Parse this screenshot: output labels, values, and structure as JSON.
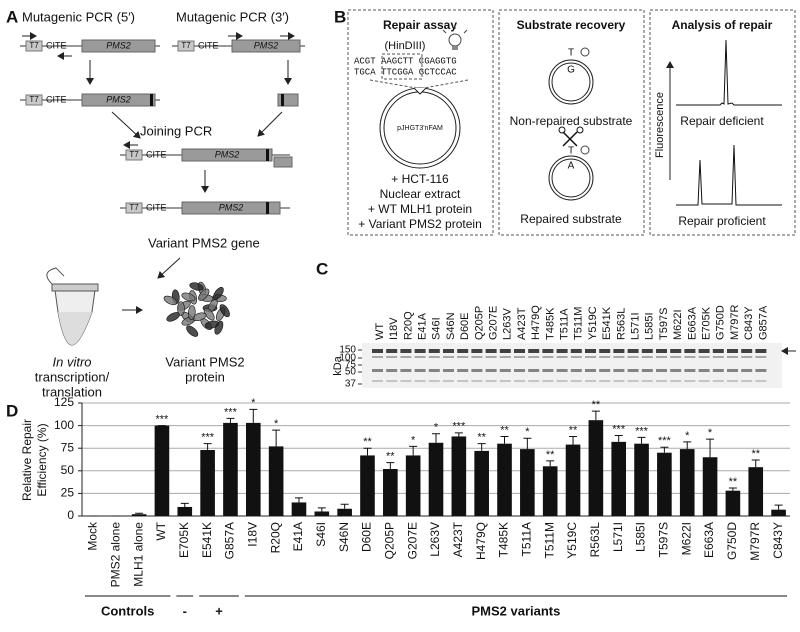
{
  "panel_a": {
    "label": "A",
    "pcr5": "Mutagenic PCR (5′)",
    "pcr3": "Mutagenic PCR (3′)",
    "t7": "T7",
    "cite": "CITE",
    "gene": "PMS2",
    "joining": "Joining PCR",
    "variant_gene": "Variant PMS2 gene",
    "ivt": [
      "In vitro",
      "transcription/",
      "translation"
    ],
    "variant_protein": [
      "Variant PMS2",
      "protein"
    ]
  },
  "panel_b": {
    "label": "B",
    "repair_assay": {
      "title": "Repair assay",
      "site": "(HinDIII)",
      "top_strand": "ACGT AAGCTT CGAGGTG",
      "bottom_strand": "TGCA TTCGGA GCTCCAC",
      "plasmid": "pJHGT3'nFAM",
      "conditions": [
        "+ HCT-116",
        "Nuclear extract",
        "+ WT MLH1 protein",
        "+ Variant PMS2 protein"
      ]
    },
    "substrate_recovery": {
      "title": "Substrate recovery",
      "non_repaired": {
        "top": "T",
        "bottom": "G",
        "caption": "Non-repaired substrate"
      },
      "repaired": {
        "top": "T",
        "bottom": "A",
        "caption": "Repaired substrate"
      }
    },
    "analysis": {
      "title": "Analysis of repair",
      "axis": "Fluorescence",
      "deficient": "Repair deficient",
      "proficient": "Repair proficient"
    }
  },
  "panel_c": {
    "label": "C",
    "lanes": [
      "WT",
      "I18V",
      "R20Q",
      "E41A",
      "S46I",
      "S46N",
      "D60E",
      "Q205P",
      "G207E",
      "L263V",
      "A423T",
      "H479Q",
      "T485K",
      "T511A",
      "T511M",
      "Y519C",
      "E541K",
      "R563L",
      "L571I",
      "L585I",
      "T597S",
      "M622I",
      "E663A",
      "E705K",
      "G750D",
      "M797R",
      "C843Y",
      "G857A"
    ],
    "axis_label": "kDa",
    "markers": [
      150,
      100,
      75,
      50,
      37
    ]
  },
  "chart_data": {
    "type": "bar",
    "panel_label": "D",
    "y_label": [
      "Relative Repair",
      "Efficiency (%)"
    ],
    "categories": [
      "Mock",
      "PMS2 alone",
      "MLH1 alone",
      "WT",
      "E705K",
      "E541K",
      "G857A",
      "I18V",
      "R20Q",
      "E41A",
      "S46I",
      "S46N",
      "D60E",
      "Q205P",
      "G207E",
      "L263V",
      "A423T",
      "H479Q",
      "T485K",
      "T511A",
      "T511M",
      "Y519C",
      "R563L",
      "L571I",
      "L585I",
      "T597S",
      "M622I",
      "E663A",
      "G750D",
      "M797R",
      "C843Y"
    ],
    "values": [
      0,
      0,
      2,
      100,
      10,
      73,
      103,
      103,
      77,
      15,
      5,
      8,
      67,
      52,
      67,
      81,
      88,
      72,
      80,
      74,
      55,
      79,
      106,
      82,
      80,
      70,
      74,
      65,
      28,
      54,
      7
    ],
    "errors": [
      0,
      0,
      1,
      0,
      4,
      7,
      5,
      15,
      18,
      5,
      4,
      5,
      8,
      7,
      10,
      10,
      4,
      8,
      8,
      12,
      6,
      9,
      10,
      7,
      7,
      6,
      8,
      20,
      3,
      8,
      5
    ],
    "significance": [
      null,
      null,
      null,
      "***",
      null,
      "***",
      "***",
      "*",
      "*",
      null,
      null,
      null,
      "**",
      "**",
      "*",
      "*",
      "***",
      "**",
      "**",
      "*",
      "**",
      "**",
      "**",
      "***",
      "***",
      "***",
      "*",
      "*",
      "**",
      "**",
      null
    ],
    "groups": [
      {
        "label": "Controls",
        "first": "Mock",
        "last": "WT"
      },
      {
        "label": "-",
        "first": "E705K",
        "last": "E705K"
      },
      {
        "label": "+",
        "first": "E541K",
        "last": "G857A"
      },
      {
        "label": "PMS2 variants",
        "first": "I18V",
        "last": "C843Y"
      }
    ],
    "ylim": [
      0,
      125
    ],
    "yticks": [
      0,
      25,
      50,
      75,
      100,
      125
    ],
    "grid": true,
    "color": "#111111"
  }
}
